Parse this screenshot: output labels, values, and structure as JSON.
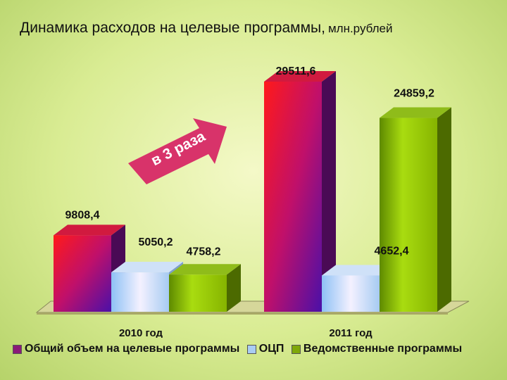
{
  "chart_data": {
    "type": "bar",
    "title": "Динамика расходов на целевые программы,",
    "unit": "млн.рублей",
    "categories": [
      "2010 год",
      "2011 год"
    ],
    "series": [
      {
        "name": "Общий объем на целевые программы",
        "values": [
          9808.4,
          29511.6
        ],
        "labels": [
          "9808,4",
          "29511,6"
        ],
        "color": "#8a1a78"
      },
      {
        "name": "ОЦП",
        "values": [
          5050.2,
          4652.4
        ],
        "labels": [
          "5050,2",
          "4652,4"
        ],
        "color": "#a9cdf3"
      },
      {
        "name": "Ведомственные программы",
        "values": [
          4758.2,
          24859.2
        ],
        "labels": [
          "4758,2",
          "24859,2"
        ],
        "color": "#7fa80a"
      }
    ],
    "annotation": "в 3 раза",
    "ylim": [
      0,
      29511.6
    ],
    "legend_position": "bottom",
    "grid": false
  }
}
